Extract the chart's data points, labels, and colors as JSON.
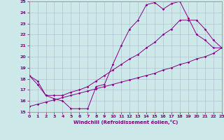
{
  "xlabel": "Windchill (Refroidissement éolien,°C)",
  "xlim": [
    0,
    23
  ],
  "ylim": [
    15,
    25
  ],
  "xticks": [
    0,
    1,
    2,
    3,
    4,
    5,
    6,
    7,
    8,
    9,
    10,
    11,
    12,
    13,
    14,
    15,
    16,
    17,
    18,
    19,
    20,
    21,
    22,
    23
  ],
  "yticks": [
    15,
    16,
    17,
    18,
    19,
    20,
    21,
    22,
    23,
    24,
    25
  ],
  "bg_color": "#cce8e8",
  "grid_color": "#b0b8d0",
  "line_color": "#880088",
  "line1_x": [
    0,
    1,
    2,
    3,
    4,
    5,
    6,
    7,
    8,
    9,
    10,
    11,
    12,
    13,
    14,
    15,
    16,
    17,
    18,
    19,
    20,
    21,
    22,
    23
  ],
  "line1_y": [
    18.3,
    17.5,
    16.5,
    16.2,
    16.0,
    15.3,
    15.3,
    15.3,
    17.3,
    17.5,
    19.3,
    21.0,
    22.5,
    23.3,
    24.7,
    24.9,
    24.3,
    24.8,
    25.0,
    23.5,
    22.0,
    21.5,
    20.8,
    20.8
  ],
  "line2_x": [
    0,
    1,
    2,
    3,
    4,
    5,
    6,
    7,
    8,
    9,
    10,
    11,
    12,
    13,
    14,
    15,
    16,
    17,
    18,
    19,
    20,
    21,
    22,
    23
  ],
  "line2_y": [
    18.3,
    17.8,
    16.5,
    16.5,
    16.5,
    16.8,
    17.0,
    17.3,
    17.8,
    18.3,
    18.8,
    19.3,
    19.8,
    20.2,
    20.8,
    21.3,
    22.0,
    22.5,
    23.3,
    23.3,
    23.3,
    22.5,
    21.5,
    20.8
  ],
  "line3_x": [
    0,
    1,
    2,
    3,
    4,
    5,
    6,
    7,
    8,
    9,
    10,
    11,
    12,
    13,
    14,
    15,
    16,
    17,
    18,
    19,
    20,
    21,
    22,
    23
  ],
  "line3_y": [
    15.5,
    15.7,
    15.9,
    16.1,
    16.3,
    16.5,
    16.7,
    16.9,
    17.1,
    17.3,
    17.5,
    17.7,
    17.9,
    18.1,
    18.3,
    18.5,
    18.8,
    19.0,
    19.3,
    19.5,
    19.8,
    20.0,
    20.3,
    20.8
  ]
}
